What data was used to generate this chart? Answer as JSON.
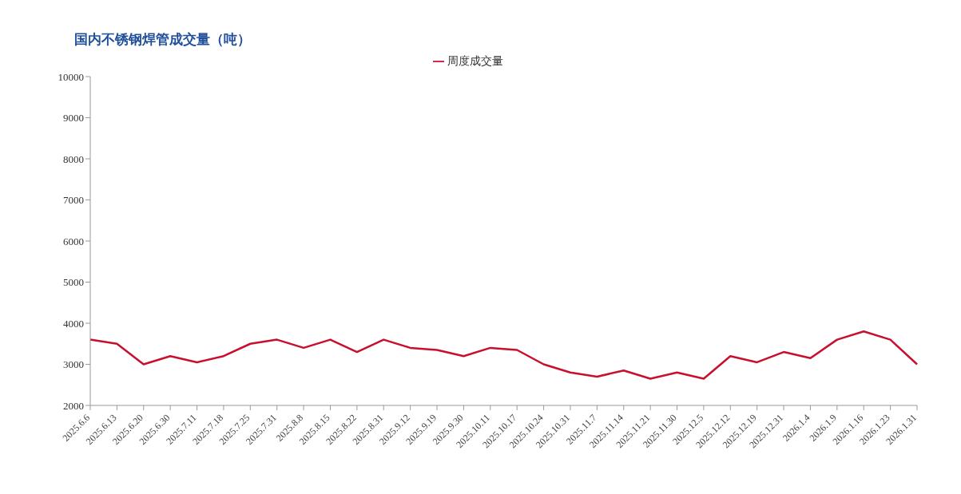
{
  "chart_data": {
    "type": "line",
    "title": "国内不锈钢焊管成交量（吨）",
    "categories": [
      "2025.6.6",
      "2025.6.13",
      "2025.6.20",
      "2025.6.30",
      "2025.7.11",
      "2025.7.18",
      "2025.7.25",
      "2025.7.31",
      "2025.8.8",
      "2025.8.15",
      "2025.8.22",
      "2025.8.31",
      "2025.9.12",
      "2025.9.19",
      "2025.9.30",
      "2025.10.11",
      "2025.10.17",
      "2025.10.24",
      "2025.10.31",
      "2025.11.7",
      "2025.11.14",
      "2025.11.21",
      "2025.11.30",
      "2025.12.5",
      "2025.12.12",
      "2025.12.19",
      "2025.12.31",
      "2026.1.4",
      "2026.1.9",
      "2026.1.16",
      "2026.1.23",
      "2026.1.31"
    ],
    "series": [
      {
        "name": "周度成交量",
        "color": "#c8102e",
        "values": [
          3600,
          3500,
          3000,
          3200,
          3050,
          3200,
          3500,
          3600,
          3400,
          3600,
          3300,
          3600,
          3400,
          3350,
          3200,
          3400,
          3350,
          3000,
          2800,
          2700,
          2850,
          2650,
          2800,
          2650,
          3200,
          3050,
          3300,
          3150,
          3600,
          3800,
          3600,
          3000
        ]
      }
    ],
    "ylim": [
      2000,
      10000
    ],
    "yticks": [
      2000,
      3000,
      4000,
      5000,
      6000,
      7000,
      8000,
      9000,
      10000
    ],
    "grid": false,
    "legend": "top",
    "marker": "none",
    "line_style": "solid"
  }
}
